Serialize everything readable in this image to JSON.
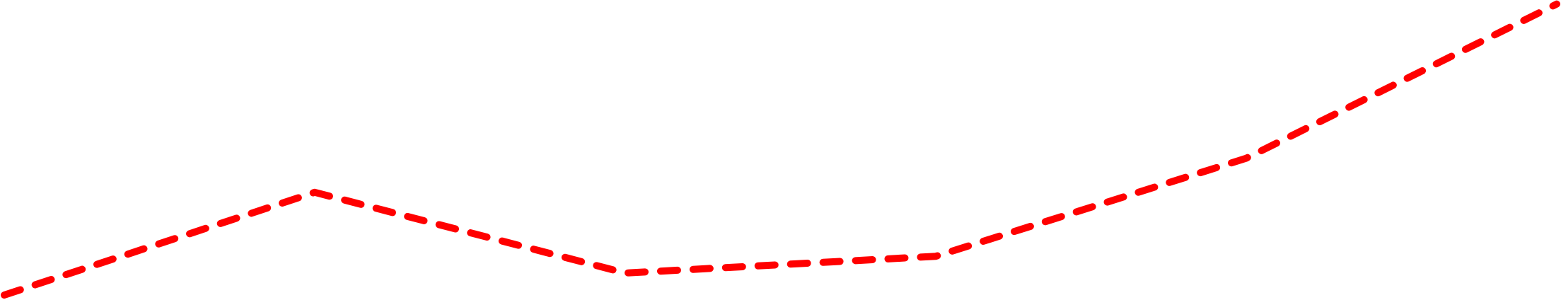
{
  "chart_data": {
    "type": "line",
    "title": "",
    "xlabel": "",
    "ylabel": "",
    "x": [
      0,
      1,
      2,
      3,
      4,
      5
    ],
    "series": [
      {
        "values": [
          0,
          1.96,
          0.42,
          0.74,
          2.61,
          5.55
        ],
        "color": "#ff0000",
        "line_style": "dashed"
      }
    ],
    "xlim": [
      0,
      5
    ],
    "ylim": [
      0,
      5.6
    ],
    "grid": false,
    "axes_visible": false,
    "legend": "none"
  }
}
